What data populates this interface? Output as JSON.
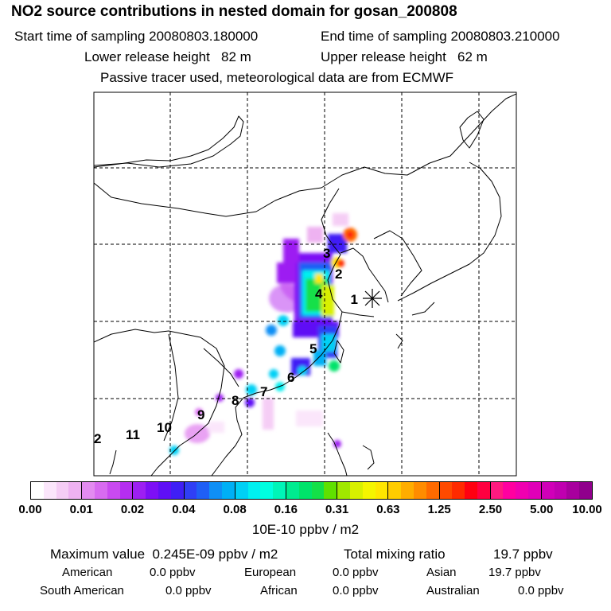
{
  "header": {
    "title": "NO2 source contributions in nested domain for gosan_200808",
    "start_label": "Start time of sampling 20080803.180000",
    "end_label": "End time of sampling 20080803.210000",
    "lower_label": "Lower release height",
    "lower_value": "82 m",
    "upper_label": "Upper release height",
    "upper_value": "62 m",
    "tracer_note": "Passive tracer used, meteorological data are from ECMWF"
  },
  "map": {
    "receptor_label": "1",
    "receptor_symbol": "✳",
    "region_labels": [
      "2",
      "3",
      "4",
      "5",
      "6",
      "7",
      "8",
      "9",
      "10",
      "11",
      "2"
    ]
  },
  "colorbar": {
    "ticks": [
      "0.00",
      "0.01",
      "0.02",
      "0.04",
      "0.08",
      "0.16",
      "0.31",
      "0.63",
      "1.25",
      "2.50",
      "5.00",
      "10.00"
    ],
    "units": "10E-10 ppbv / m2",
    "colors": [
      "#ffffff",
      "#fbe6fb",
      "#f5cdf5",
      "#eeb2f1",
      "#e38bf0",
      "#d86bf0",
      "#c94af0",
      "#b52ef0",
      "#9d1ff2",
      "#7d0ff5",
      "#5f0ff5",
      "#3f1ff5",
      "#2f3ff5",
      "#1f5ff5",
      "#0f8ff5",
      "#00b0f5",
      "#00d0f5",
      "#00f0f0",
      "#00ffe0",
      "#00f5b8",
      "#00eb90",
      "#00e36a",
      "#14e048",
      "#60e000",
      "#a0e800",
      "#d8f000",
      "#f5f500",
      "#ffe600",
      "#ffcc00",
      "#ffad00",
      "#ff8c00",
      "#ff6a00",
      "#ff4a00",
      "#ff2a00",
      "#ff0010",
      "#ff0040",
      "#ff1a80",
      "#ff00a0",
      "#f000b0",
      "#e000b8",
      "#d000b8",
      "#c000b0",
      "#a8009e",
      "#90008c",
      "#78007c",
      "#60006c",
      "#500060",
      "#400050"
    ]
  },
  "summary": {
    "max_label": "Maximum value",
    "max_value": "0.245E-09 ppbv / m2",
    "total_label": "Total mixing ratio",
    "total_value": "19.7 ppbv",
    "regions": [
      {
        "name": "American",
        "value": "0.0 ppbv"
      },
      {
        "name": "European",
        "value": "0.0 ppbv"
      },
      {
        "name": "Asian",
        "value": "19.7 ppbv"
      },
      {
        "name": "South American",
        "value": "0.0 ppbv"
      },
      {
        "name": "African",
        "value": "0.0 ppbv"
      },
      {
        "name": "Australian",
        "value": "0.0 ppbv"
      }
    ]
  }
}
